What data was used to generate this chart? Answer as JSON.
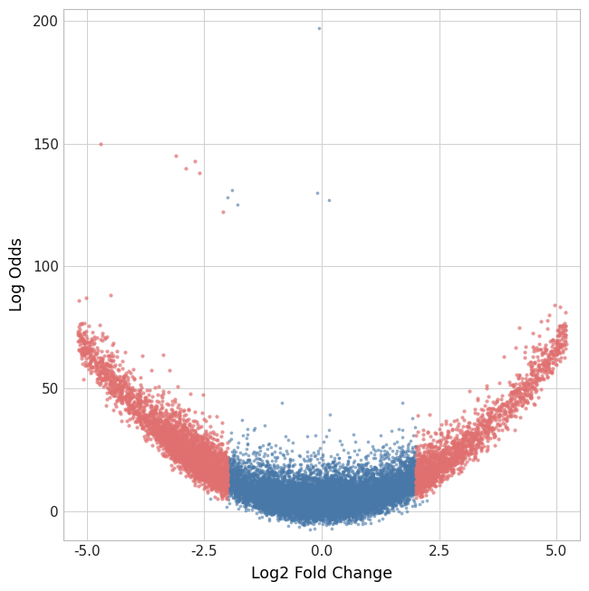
{
  "title": "",
  "xlabel": "Log2 Fold Change",
  "ylabel": "Log Odds",
  "xlim": [
    -5.5,
    5.5
  ],
  "ylim": [
    -12,
    205
  ],
  "xticks": [
    -5.0,
    -2.5,
    0.0,
    2.5,
    5.0
  ],
  "yticks": [
    0,
    50,
    100,
    150,
    200
  ],
  "background_color": "#ffffff",
  "grid_color": "#d0d0d0",
  "blue_color": "#4878a8",
  "red_color": "#e07070",
  "seed": 42,
  "fc_threshold": 2.0
}
